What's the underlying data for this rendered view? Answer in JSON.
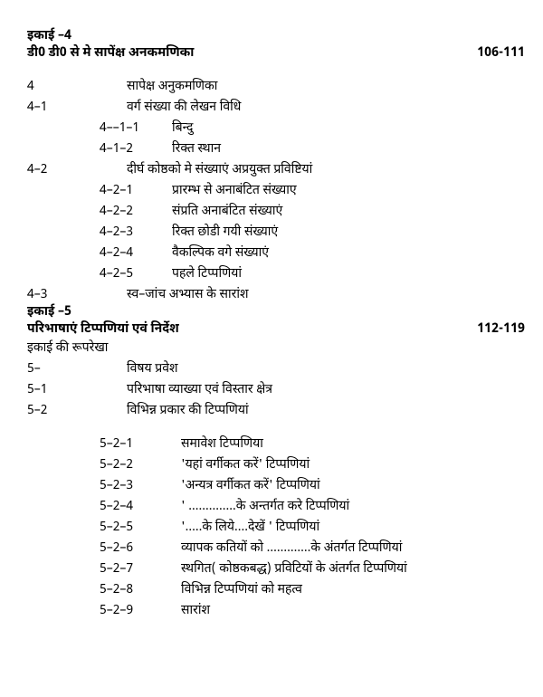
{
  "unit4": {
    "label": "इकाई –4",
    "title": "डी0 डी0 से मे सापेंक्ष अनकमणिका",
    "pages": "106-111",
    "entries": [
      {
        "cls": "w-num-0",
        "num": "4",
        "txt": "सापेक्ष अनुकमणिका"
      },
      {
        "cls": "w-num-0",
        "num": "4–1",
        "txt": "वर्ग संख्या की लेखन विधि"
      },
      {
        "cls": "w-num-1",
        "num": "4––1–1",
        "txt": "बिन्दु"
      },
      {
        "cls": "w-num-1",
        "num": "4–1–2",
        "txt": "रिक्त स्थान"
      },
      {
        "cls": "w-num-0",
        "num": "4–2",
        "txt": "दीर्घ कोष्ठको मे संख्याएं अप्रयुक्त प्रविष्टियां"
      },
      {
        "cls": "w-num-1",
        "num": "4–2–1",
        "txt": "प्रारम्भ से अनाबंटित संख्याए"
      },
      {
        "cls": "w-num-1",
        "num": "4–2–2",
        "txt": "संप्रति अनाबंटित संख्याएं"
      },
      {
        "cls": "w-num-1",
        "num": "4–2–3",
        "txt": "रिक्त छोडी गयी संख्याएं"
      },
      {
        "cls": "w-num-1",
        "num": "4–2–4",
        "txt": "वैकल्पिक वगे संख्याएं"
      },
      {
        "cls": "w-num-1",
        "num": "4–2–5",
        "txt": "पहले टिप्पणियां"
      },
      {
        "cls": "w-num-0",
        "num": "4–3",
        "txt": "स्व–जांच अभ्यास के सारांश"
      }
    ]
  },
  "unit5": {
    "label": "इकाई –5",
    "title": "परिभाषाएं टिप्पणियां एवं निर्देश",
    "pages": "112-119",
    "subtitle": "इकाई की रूपरेखा",
    "entries1": [
      {
        "cls": "w-num-0",
        "num": "5–",
        "txt": "विषय प्रवेश"
      },
      {
        "cls": "w-num-0",
        "num": "5–1",
        "txt": "परिभाषा व्याख्या एवं विस्तार क्षेत्र"
      },
      {
        "cls": "w-num-0",
        "num": "5–2",
        "txt": "विभिन्न प्रकार की टिप्पणियां"
      }
    ],
    "entries2": [
      {
        "cls": "w-num-2",
        "num": "5–2–1",
        "txt": "समावेश टिप्पणिया"
      },
      {
        "cls": "w-num-2",
        "num": "5–2–2",
        "txt": "'यहां वर्गीकत करें' टिप्पणियां"
      },
      {
        "cls": "w-num-2",
        "num": "5–2–3",
        "txt": "'अन्यत्र वर्गीकत करें' टिप्पणियां"
      },
      {
        "cls": "w-num-2",
        "num": "5–2–4",
        "txt": "' ..............के अन्तर्गत करे टिप्पणियां"
      },
      {
        "cls": "w-num-2",
        "num": "5–2–5",
        "txt": "'.....के लिये....देखें ' टिप्पणियां"
      },
      {
        "cls": "w-num-2",
        "num": "5–2–6",
        "txt": "व्यापक कतियों को .............के अंतर्गत टिप्पणियां"
      },
      {
        "cls": "w-num-2",
        "num": "5–2–7",
        "txt": "स्थगित( कोष्ठकबद्ध) प्रविटियों के अंतर्गत टिप्पणियां"
      },
      {
        "cls": "w-num-2",
        "num": "5–2–8",
        "txt": "विभिन्न टिप्पणियां को महत्व"
      },
      {
        "cls": "w-num-2",
        "num": "5–2–9",
        "txt": "सारांश"
      }
    ]
  }
}
